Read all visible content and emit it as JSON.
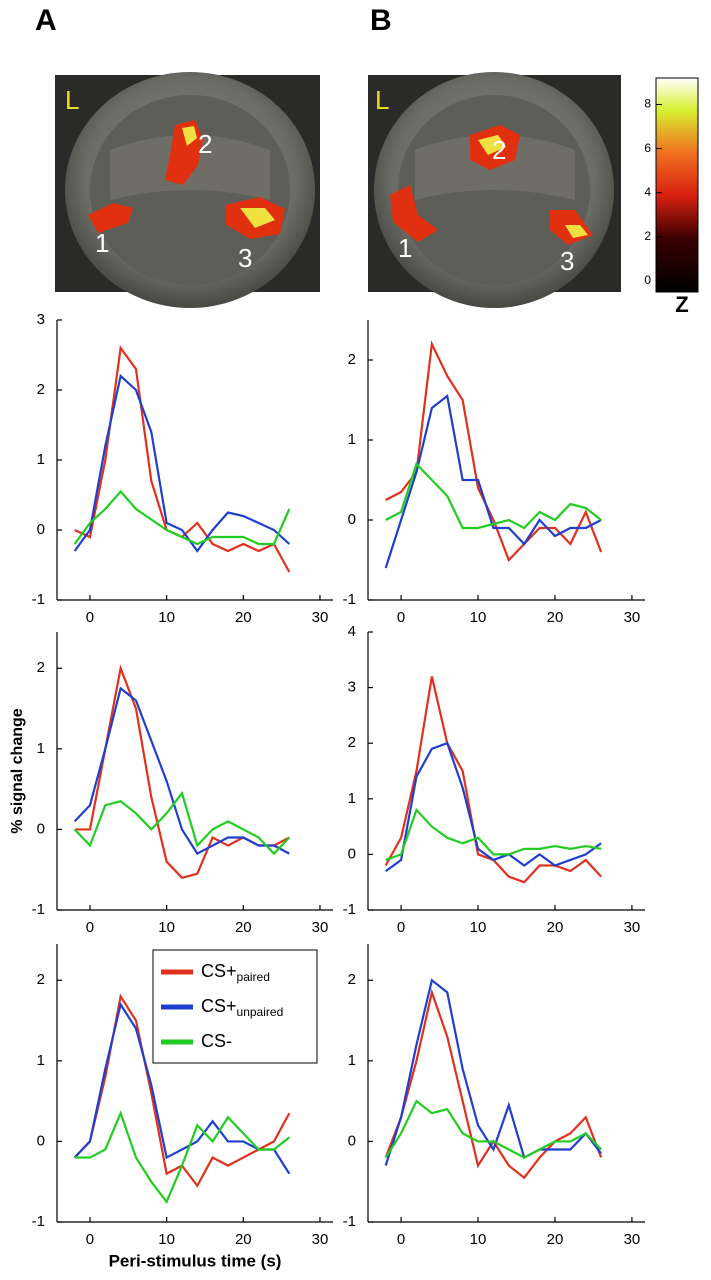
{
  "panels": [
    "A",
    "B"
  ],
  "images": [
    {
      "orientation": "L",
      "regions": [
        "1",
        "2",
        "3"
      ]
    },
    {
      "orientation": "L",
      "regions": [
        "1",
        "2",
        "3"
      ]
    }
  ],
  "colorbar": {
    "label": "Z",
    "lim": [
      -0.5,
      9.2
    ],
    "ticks": [
      0,
      2,
      4,
      6,
      8
    ]
  },
  "chart_data": [
    {
      "type": "line",
      "x": [
        -2,
        0,
        2,
        4,
        6,
        8,
        10,
        12,
        14,
        16,
        18,
        20,
        22,
        24,
        26
      ],
      "xlim": [
        -4.3,
        31.7
      ],
      "xticks": [
        0,
        10,
        20,
        30
      ],
      "ylim": [
        -1,
        3
      ],
      "yticks": [
        -1,
        0,
        1,
        2,
        3
      ],
      "series": [
        {
          "name": "CS+",
          "name_subscript": "paired",
          "color": "#e0301e",
          "values": [
            0.0,
            -0.1,
            1.0,
            2.6,
            2.3,
            0.7,
            0.0,
            -0.1,
            0.1,
            -0.2,
            -0.3,
            -0.2,
            -0.3,
            -0.2,
            -0.6
          ]
        },
        {
          "name": "CS+",
          "name_subscript": "unpaired",
          "color": "#1f3fcf",
          "values": [
            -0.3,
            0.0,
            1.2,
            2.2,
            2.0,
            1.4,
            0.1,
            0.0,
            -0.3,
            0.0,
            0.25,
            0.2,
            0.1,
            0.0,
            -0.2
          ]
        },
        {
          "name": "CS-",
          "color": "#22cc22",
          "values": [
            -0.2,
            0.1,
            0.3,
            0.55,
            0.3,
            0.15,
            0.0,
            -0.1,
            -0.2,
            -0.1,
            -0.1,
            -0.1,
            -0.2,
            -0.2,
            0.3
          ]
        }
      ]
    },
    {
      "type": "line",
      "x": [
        -2,
        0,
        2,
        4,
        6,
        8,
        10,
        12,
        14,
        16,
        18,
        20,
        22,
        24,
        26
      ],
      "xlim": [
        -4.3,
        31.7
      ],
      "xticks": [
        0,
        10,
        20,
        30
      ],
      "ylim": [
        -1,
        2.5
      ],
      "yticks": [
        -1,
        0,
        1,
        2
      ],
      "series": [
        {
          "name": "CS+",
          "name_subscript": "paired",
          "color": "#e0301e",
          "values": [
            0.25,
            0.35,
            0.6,
            2.2,
            1.8,
            1.5,
            0.4,
            0.0,
            -0.5,
            -0.3,
            -0.1,
            -0.1,
            -0.3,
            0.1,
            -0.4
          ]
        },
        {
          "name": "CS+",
          "name_subscript": "unpaired",
          "color": "#1f3fcf",
          "values": [
            -0.6,
            0.0,
            0.6,
            1.4,
            1.55,
            0.5,
            0.5,
            -0.1,
            -0.1,
            -0.3,
            0.0,
            -0.2,
            -0.1,
            -0.1,
            0.0
          ]
        },
        {
          "name": "CS-",
          "color": "#22cc22",
          "values": [
            0.0,
            0.1,
            0.7,
            0.5,
            0.3,
            -0.1,
            -0.1,
            -0.05,
            0.0,
            -0.1,
            0.1,
            0.0,
            0.2,
            0.15,
            0.0
          ]
        }
      ]
    },
    {
      "type": "line",
      "ylabel": "% signal change",
      "x": [
        -2,
        0,
        2,
        4,
        6,
        8,
        10,
        12,
        14,
        16,
        18,
        20,
        22,
        24,
        26
      ],
      "xlim": [
        -4.3,
        31.7
      ],
      "xticks": [
        0,
        10,
        20,
        30
      ],
      "ylim": [
        -1,
        2.45
      ],
      "yticks": [
        -1,
        0,
        1,
        2
      ],
      "series": [
        {
          "name": "CS+",
          "name_subscript": "paired",
          "color": "#e0301e",
          "values": [
            0.0,
            0.0,
            1.0,
            2.0,
            1.5,
            0.4,
            -0.4,
            -0.6,
            -0.55,
            -0.1,
            -0.2,
            -0.1,
            -0.2,
            -0.2,
            -0.1
          ]
        },
        {
          "name": "CS+",
          "name_subscript": "unpaired",
          "color": "#1f3fcf",
          "values": [
            0.1,
            0.3,
            1.0,
            1.75,
            1.6,
            1.1,
            0.6,
            0.0,
            -0.3,
            -0.2,
            -0.1,
            -0.1,
            -0.2,
            -0.2,
            -0.3
          ]
        },
        {
          "name": "CS-",
          "color": "#22cc22",
          "values": [
            0.0,
            -0.2,
            0.3,
            0.35,
            0.2,
            0.0,
            0.2,
            0.45,
            -0.2,
            0.0,
            0.1,
            0.0,
            -0.1,
            -0.3,
            -0.1
          ]
        }
      ]
    },
    {
      "type": "line",
      "x": [
        -2,
        0,
        2,
        4,
        6,
        8,
        10,
        12,
        14,
        16,
        18,
        20,
        22,
        24,
        26
      ],
      "xlim": [
        -4.3,
        31.7
      ],
      "xticks": [
        0,
        10,
        20,
        30
      ],
      "ylim": [
        -1,
        4
      ],
      "yticks": [
        -1,
        0,
        1,
        2,
        3,
        4
      ],
      "series": [
        {
          "name": "CS+",
          "name_subscript": "paired",
          "color": "#e0301e",
          "values": [
            -0.2,
            0.3,
            1.5,
            3.2,
            2.0,
            1.5,
            0.0,
            -0.1,
            -0.4,
            -0.5,
            -0.2,
            -0.2,
            -0.3,
            -0.1,
            -0.4
          ]
        },
        {
          "name": "CS+",
          "name_subscript": "unpaired",
          "color": "#1f3fcf",
          "values": [
            -0.3,
            -0.1,
            1.4,
            1.9,
            2.0,
            1.2,
            0.1,
            -0.1,
            0.0,
            -0.2,
            0.0,
            -0.2,
            -0.1,
            0.0,
            0.2
          ]
        },
        {
          "name": "CS-",
          "color": "#22cc22",
          "values": [
            -0.1,
            0.0,
            0.8,
            0.5,
            0.3,
            0.2,
            0.3,
            0.0,
            0.0,
            0.1,
            0.1,
            0.15,
            0.1,
            0.15,
            0.1
          ]
        }
      ]
    },
    {
      "type": "line",
      "xlabel": "Peri-stimulus time (s)",
      "legend": "upper right",
      "x": [
        -2,
        0,
        2,
        4,
        6,
        8,
        10,
        12,
        14,
        16,
        18,
        20,
        22,
        24,
        26
      ],
      "xlim": [
        -4.3,
        31.7
      ],
      "xticks": [
        0,
        10,
        20,
        30
      ],
      "ylim": [
        -1,
        2.45
      ],
      "yticks": [
        -1,
        0,
        1,
        2
      ],
      "series": [
        {
          "name": "CS+",
          "name_subscript": "paired",
          "color": "#e0301e",
          "values": [
            -0.2,
            0.0,
            0.8,
            1.8,
            1.5,
            0.6,
            -0.4,
            -0.3,
            -0.55,
            -0.2,
            -0.3,
            -0.2,
            -0.1,
            0.0,
            0.35
          ]
        },
        {
          "name": "CS+",
          "name_subscript": "unpaired",
          "color": "#1f3fcf",
          "values": [
            -0.2,
            0.0,
            0.9,
            1.7,
            1.4,
            0.7,
            -0.2,
            -0.1,
            0.0,
            0.25,
            0.0,
            0.0,
            -0.1,
            -0.1,
            -0.4
          ]
        },
        {
          "name": "CS-",
          "color": "#22cc22",
          "values": [
            -0.2,
            -0.2,
            -0.1,
            0.35,
            -0.2,
            -0.5,
            -0.75,
            -0.3,
            0.2,
            0.0,
            0.3,
            0.1,
            -0.1,
            -0.1,
            0.05
          ]
        }
      ]
    },
    {
      "type": "line",
      "x": [
        -2,
        0,
        2,
        4,
        6,
        8,
        10,
        12,
        14,
        16,
        18,
        20,
        22,
        24,
        26
      ],
      "xlim": [
        -4.3,
        31.7
      ],
      "xticks": [
        0,
        10,
        20,
        30
      ],
      "ylim": [
        -1,
        2.45
      ],
      "yticks": [
        -1,
        0,
        1,
        2
      ],
      "series": [
        {
          "name": "CS+",
          "name_subscript": "paired",
          "color": "#e0301e",
          "values": [
            -0.2,
            0.3,
            1.0,
            1.85,
            1.3,
            0.5,
            -0.3,
            0.0,
            -0.3,
            -0.45,
            -0.2,
            0.0,
            0.1,
            0.3,
            -0.2
          ]
        },
        {
          "name": "CS+",
          "name_subscript": "unpaired",
          "color": "#1f3fcf",
          "values": [
            -0.3,
            0.3,
            1.2,
            2.0,
            1.85,
            0.9,
            0.2,
            -0.1,
            0.45,
            -0.2,
            -0.1,
            -0.1,
            -0.1,
            0.1,
            -0.15
          ]
        },
        {
          "name": "CS-",
          "color": "#22cc22",
          "values": [
            -0.2,
            0.1,
            0.5,
            0.35,
            0.4,
            0.1,
            0.0,
            0.0,
            -0.1,
            -0.2,
            -0.1,
            0.0,
            0.0,
            0.1,
            -0.1
          ]
        }
      ]
    }
  ]
}
